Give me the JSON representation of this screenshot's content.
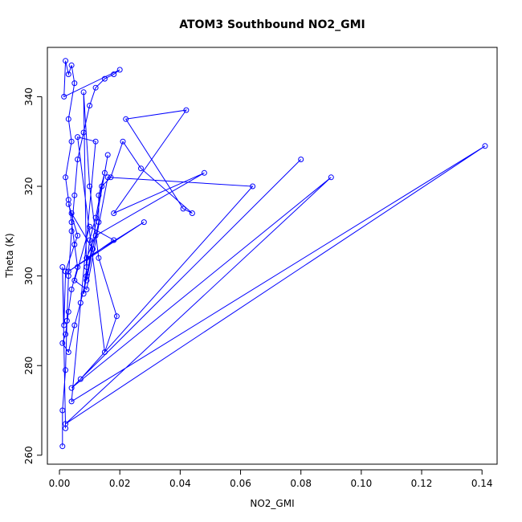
{
  "chart_data": {
    "type": "line",
    "title": "ATOM3 Southbound NO2_GMI",
    "xlabel": "NO2_GMI",
    "ylabel": "Theta (K)",
    "xlim": [
      -0.004,
      0.145
    ],
    "ylim": [
      258,
      351
    ],
    "x_ticks": [
      0.0,
      0.02,
      0.04,
      0.06,
      0.08,
      0.1,
      0.12,
      0.14
    ],
    "x_tick_labels": [
      "0.00",
      "0.02",
      "0.04",
      "0.06",
      "0.08",
      "0.10",
      "0.12",
      "0.14"
    ],
    "y_ticks": [
      260,
      280,
      300,
      320,
      340
    ],
    "y_tick_labels": [
      "260",
      "280",
      "300",
      "320",
      "340"
    ],
    "grid": false,
    "marker": "open-circle",
    "series": [
      {
        "color": "#0000ff",
        "x": [
          0.001,
          0.001,
          0.002,
          0.0025,
          0.003,
          0.004,
          0.005,
          0.006,
          0.008,
          0.01,
          0.012,
          0.015,
          0.018,
          0.02,
          0.0015,
          0.002,
          0.003,
          0.004,
          0.005,
          0.003,
          0.004,
          0.002,
          0.003,
          0.004,
          0.005,
          0.006,
          0.004,
          0.003,
          0.002,
          0.001,
          0.003,
          0.005,
          0.007,
          0.009,
          0.011,
          0.013,
          0.013,
          0.015,
          0.016,
          0.008,
          0.009,
          0.01,
          0.012,
          0.014,
          0.017,
          0.021,
          0.027,
          0.044,
          0.041,
          0.022,
          0.042,
          0.018,
          0.048,
          0.012,
          0.009,
          0.028,
          0.003,
          0.018,
          0.01,
          0.005,
          0.009,
          0.016,
          0.064,
          0.007,
          0.08,
          0.004,
          0.09,
          0.002,
          0.141,
          0.004,
          0.012,
          0.006,
          0.015,
          0.019,
          0.013,
          0.01,
          0.008,
          0.009,
          0.011,
          0.004,
          0.003,
          0.006,
          0.002,
          0.0015,
          0.001,
          0.002
        ],
        "y": [
          262,
          270,
          279,
          290,
          300,
          310,
          318,
          326,
          332,
          338,
          342,
          344,
          345,
          346,
          340,
          348,
          345,
          347,
          343,
          335,
          330,
          322,
          317,
          312,
          307,
          302,
          297,
          292,
          287,
          285,
          283,
          289,
          294,
          300,
          306,
          312,
          318,
          323,
          327,
          296,
          302,
          308,
          313,
          320,
          322,
          330,
          324,
          314,
          315,
          335,
          337,
          314,
          323,
          309,
          304,
          312,
          301,
          308,
          311,
          299,
          297,
          322,
          320,
          277,
          326,
          275,
          322,
          267,
          329,
          272,
          330,
          331,
          283,
          291,
          304,
          320,
          341,
          299,
          306,
          314,
          316,
          309,
          301,
          289,
          302,
          266
        ]
      }
    ]
  }
}
